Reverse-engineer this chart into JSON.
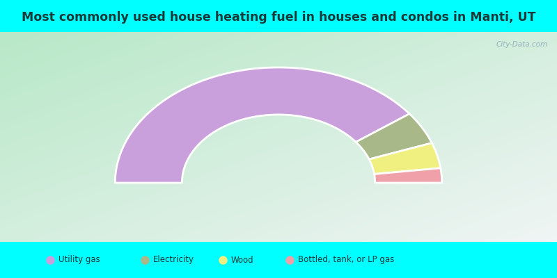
{
  "title": "Most commonly used house heating fuel in houses and condos in Manti, UT",
  "title_color": "#1a3a3a",
  "cyan_color": "#00ffff",
  "bg_gradient_left": "#b8e8c8",
  "bg_gradient_right": "#e8f0ec",
  "bg_top_right": "#ddeef5",
  "slices": [
    {
      "label": "Utility gas",
      "value": 78,
      "color": "#c9a0dc"
    },
    {
      "label": "Electricity",
      "value": 9,
      "color": "#a8b888"
    },
    {
      "label": "Wood",
      "value": 7,
      "color": "#f0f080"
    },
    {
      "label": "Bottled, tank, or LP gas",
      "value": 4,
      "color": "#f0a0a8"
    }
  ],
  "legend_marker_colors": [
    "#d4a0d4",
    "#e8d090",
    "#f0f080",
    "#f0a0a8"
  ],
  "watermark": "City-Data.com",
  "outer_r": 0.88,
  "inner_r": 0.52
}
